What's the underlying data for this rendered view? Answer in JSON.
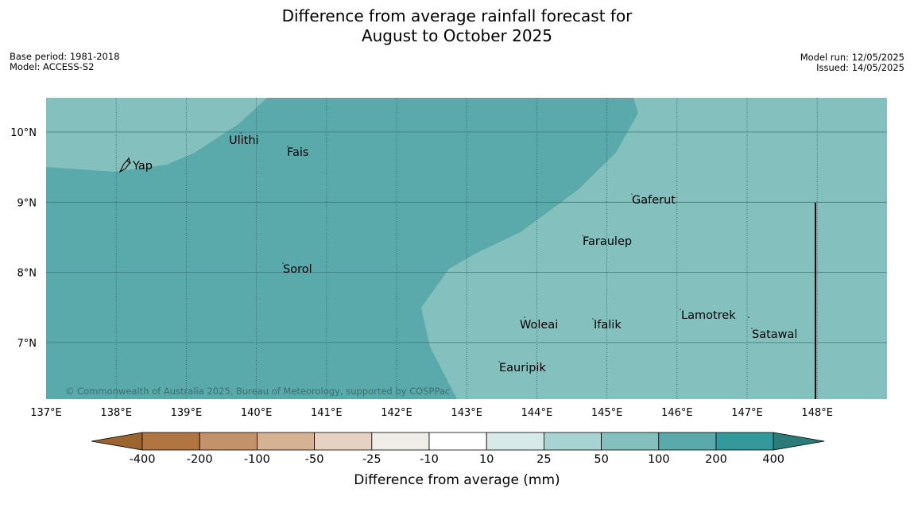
{
  "title_line1": "Difference from average rainfall forecast for",
  "title_line2": "August to October 2025",
  "base_period": "Base period: 1981-2018",
  "model": "Model: ACCESS-S2",
  "model_run": "Model run: 12/05/2025",
  "issued": "Issued: 14/05/2025",
  "copyright": "© Commonwealth of Australia 2025, Bureau of Meteorology, supported by COSPPac",
  "map": {
    "lon_range": [
      137,
      149
    ],
    "lat_range": [
      6.2,
      10.5
    ],
    "lon_ticks": [
      "137°E",
      "138°E",
      "139°E",
      "140°E",
      "141°E",
      "142°E",
      "143°E",
      "144°E",
      "145°E",
      "146°E",
      "147°E",
      "148°E"
    ],
    "lat_ticks": [
      "10°N",
      "9°N",
      "8°N",
      "7°N"
    ],
    "category_colors": {
      "50 to 100": "#84c1be",
      "100 to 200": "#5aaaab"
    },
    "places": [
      {
        "name": "Yap"
      },
      {
        "name": "Ulithi"
      },
      {
        "name": "Fais"
      },
      {
        "name": "Gaferut"
      },
      {
        "name": "Faraulep"
      },
      {
        "name": "Sorol"
      },
      {
        "name": "Lamotrek"
      },
      {
        "name": "Woleai"
      },
      {
        "name": "Ifalik"
      },
      {
        "name": "Satawal"
      },
      {
        "name": "Eauripik"
      }
    ]
  },
  "colorbar": {
    "title": "Difference from average (mm)",
    "labels": [
      "-400",
      "-200",
      "-100",
      "-50",
      "-25",
      "-10",
      "10",
      "25",
      "50",
      "100",
      "200",
      "400"
    ],
    "colors": [
      "#9c6530",
      "#b07540",
      "#c3916a",
      "#d5b392",
      "#e6d2c3",
      "#f0ece7",
      "#ffffff",
      "#d6eae9",
      "#a8d3d3",
      "#84c1be",
      "#5aaaab",
      "#34999a",
      "#2b7b7a"
    ]
  }
}
